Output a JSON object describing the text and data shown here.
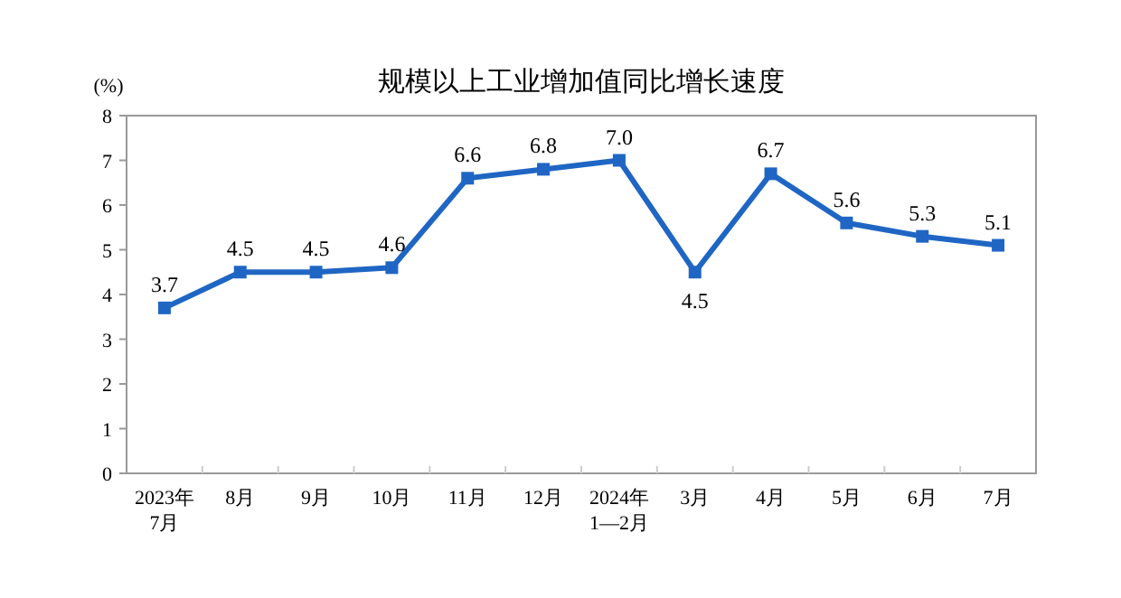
{
  "chart_data": {
    "type": "line",
    "title": "规模以上工业增加值同比增长速度",
    "ylabel": "(%)",
    "categories": [
      "2023年\n7月",
      "8月",
      "9月",
      "10月",
      "11月",
      "12月",
      "2024年\n1—2月",
      "3月",
      "4月",
      "5月",
      "6月",
      "7月"
    ],
    "series": [
      {
        "color": "#1f66c4",
        "values": [
          3.7,
          4.5,
          4.5,
          4.6,
          6.6,
          6.8,
          7.0,
          4.5,
          6.7,
          5.6,
          5.3,
          5.1
        ],
        "value_labels": [
          "3.7",
          "4.5",
          "4.5",
          "4.6",
          "6.6",
          "6.8",
          "7.0",
          "4.5",
          "6.7",
          "5.6",
          "5.3",
          "5.1"
        ]
      }
    ],
    "ylim": [
      0,
      8
    ],
    "yticks": [
      0,
      1,
      2,
      3,
      4,
      5,
      6,
      7,
      8
    ],
    "marker": "square",
    "line_style": "solid",
    "grid": false
  }
}
